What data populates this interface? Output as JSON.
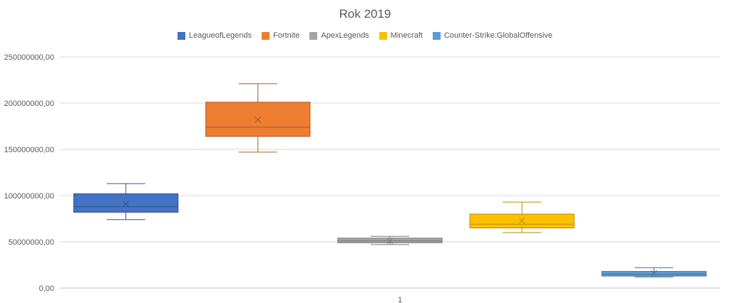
{
  "chart_data": {
    "type": "box",
    "title": "Rok 2019",
    "categories": [
      "1"
    ],
    "xlabel": "",
    "ylabel": "",
    "ylim": [
      0,
      250000000
    ],
    "y_ticks": [
      0,
      50000000,
      100000000,
      150000000,
      200000000,
      250000000
    ],
    "y_tick_labels": [
      "0,00",
      "50000000,00",
      "100000000,00",
      "150000000,00",
      "200000000,00",
      "250000000,00"
    ],
    "grid": true,
    "legend_position": "top",
    "series": [
      {
        "name": "LeagueofLegends",
        "color": "#4472C4",
        "min": 74000000,
        "q1": 82000000,
        "median": 88000000,
        "q3": 102000000,
        "max": 113000000,
        "mean": 91000000
      },
      {
        "name": "Fortnite",
        "color": "#ED7D31",
        "min": 147000000,
        "q1": 164000000,
        "median": 174000000,
        "q3": 201000000,
        "max": 221000000,
        "mean": 182000000
      },
      {
        "name": "ApexLegends",
        "color": "#A5A5A5",
        "min": 47000000,
        "q1": 49000000,
        "median": 51000000,
        "q3": 54000000,
        "max": 56000000,
        "mean": 51000000
      },
      {
        "name": "Minecraft",
        "color": "#FFC000",
        "min": 60000000,
        "q1": 65000000,
        "median": 69000000,
        "q3": 80000000,
        "max": 93000000,
        "mean": 73000000
      },
      {
        "name": "Counter-Strike:GlobalOffensive",
        "color": "#5B9BD5",
        "min": 12000000,
        "q1": 13000000,
        "median": 15000000,
        "q3": 18000000,
        "max": 22000000,
        "mean": 16000000
      }
    ]
  }
}
